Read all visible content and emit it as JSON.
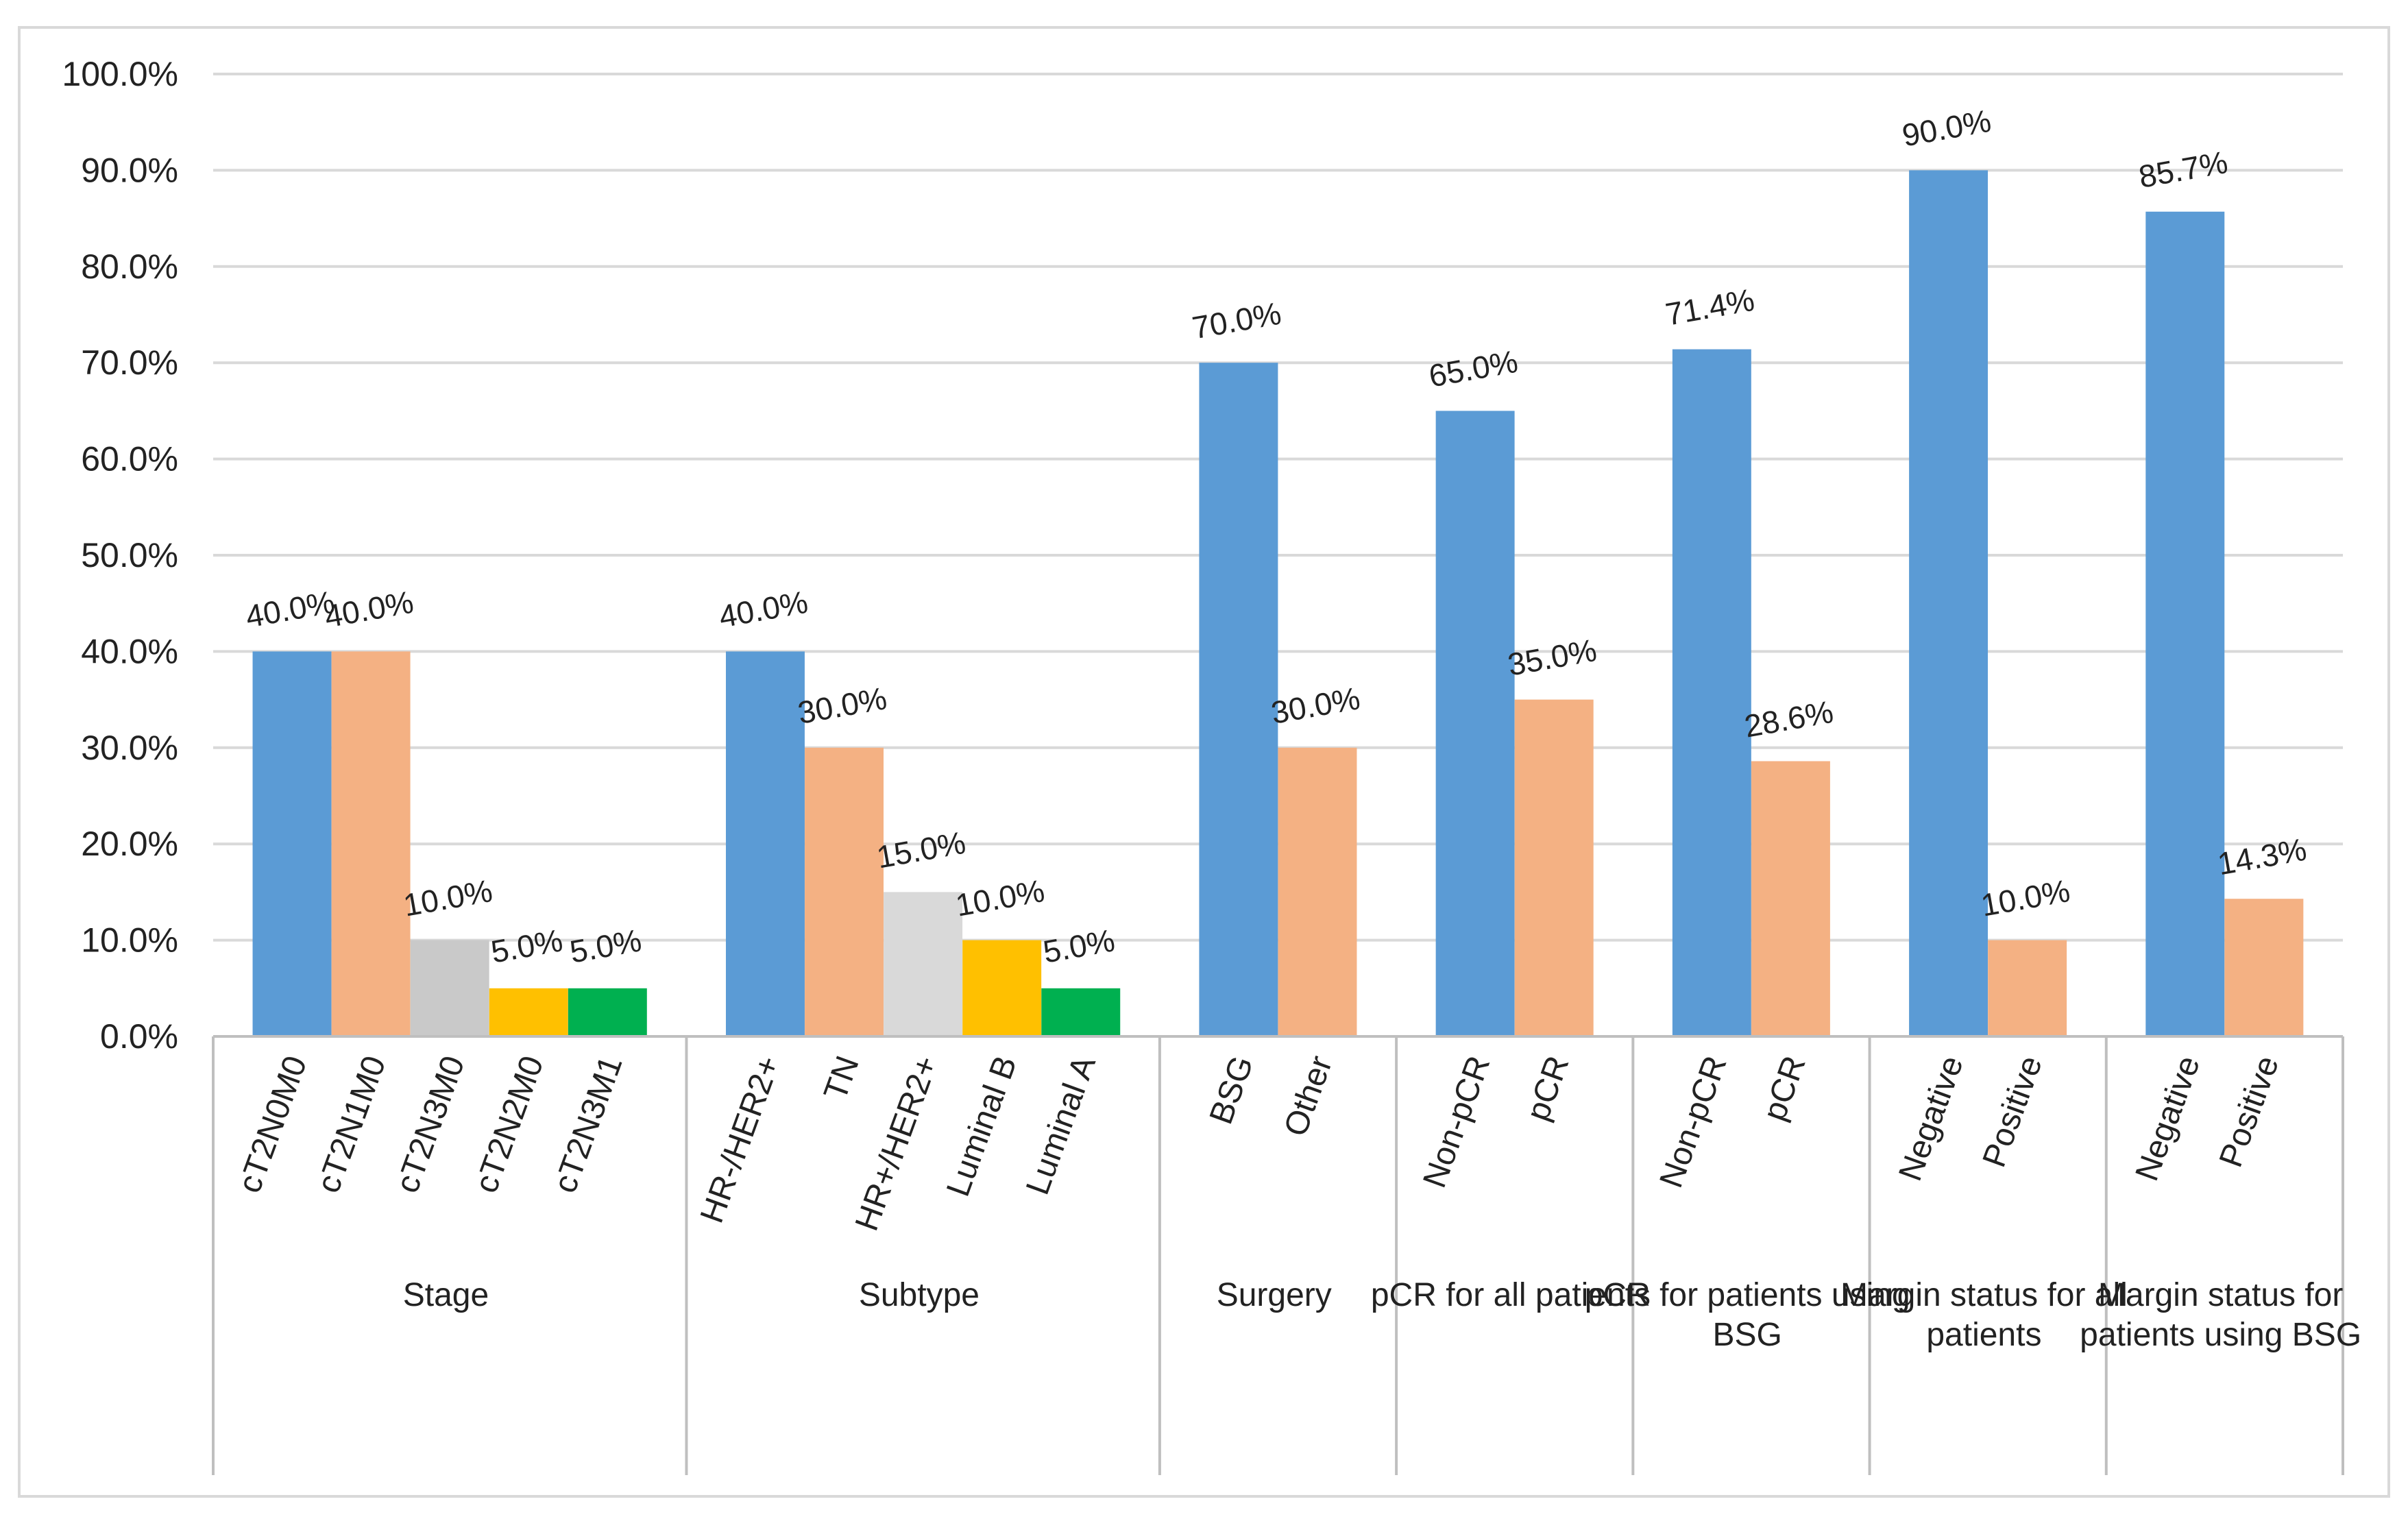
{
  "chart_data": {
    "type": "bar",
    "title": "",
    "xlabel": "",
    "ylabel": "",
    "ylim": [
      0,
      100
    ],
    "yticks": [
      "0.0%",
      "10.0%",
      "20.0%",
      "30.0%",
      "40.0%",
      "50.0%",
      "60.0%",
      "70.0%",
      "80.0%",
      "90.0%",
      "100.0%"
    ],
    "gridlines": true,
    "legend": "none",
    "groups": [
      {
        "name": "Stage",
        "bars": [
          {
            "label": "cT2N0M0",
            "value": 40.0,
            "value_label": "40.0%",
            "color": "#5B9BD5"
          },
          {
            "label": "cT2N1M0",
            "value": 40.0,
            "value_label": "40.0%",
            "color": "#F4B183"
          },
          {
            "label": "cT2N3M0",
            "value": 10.0,
            "value_label": "10.0%",
            "color": "#C9C9C9"
          },
          {
            "label": "cT2N2M0",
            "value": 5.0,
            "value_label": "5.0%",
            "color": "#FFC000"
          },
          {
            "label": "cT2N3M1",
            "value": 5.0,
            "value_label": "5.0%",
            "color": "#00B050"
          }
        ]
      },
      {
        "name": "Subtype",
        "bars": [
          {
            "label": "HR-/HER2+",
            "value": 40.0,
            "value_label": "40.0%",
            "color": "#5B9BD5"
          },
          {
            "label": "TN",
            "value": 30.0,
            "value_label": "30.0%",
            "color": "#F4B183"
          },
          {
            "label": "HR+/HER2+",
            "value": 15.0,
            "value_label": "15.0%",
            "color": "#D9D9D9"
          },
          {
            "label": "Luminal B",
            "value": 10.0,
            "value_label": "10.0%",
            "color": "#FFC000"
          },
          {
            "label": "Luminal A",
            "value": 5.0,
            "value_label": "5.0%",
            "color": "#00B050"
          }
        ]
      },
      {
        "name": "Surgery",
        "bars": [
          {
            "label": "BSG",
            "value": 70.0,
            "value_label": "70.0%",
            "color": "#5B9BD5"
          },
          {
            "label": "Other",
            "value": 30.0,
            "value_label": "30.0%",
            "color": "#F4B183"
          }
        ]
      },
      {
        "name": "pCR for all patients",
        "bars": [
          {
            "label": "Non-pCR",
            "value": 65.0,
            "value_label": "65.0%",
            "color": "#5B9BD5"
          },
          {
            "label": "pCR",
            "value": 35.0,
            "value_label": "35.0%",
            "color": "#F4B183"
          }
        ]
      },
      {
        "name": "pCR for patients using BSG",
        "bars": [
          {
            "label": "Non-pCR",
            "value": 71.4,
            "value_label": "71.4%",
            "color": "#5B9BD5"
          },
          {
            "label": "pCR",
            "value": 28.6,
            "value_label": "28.6%",
            "color": "#F4B183"
          }
        ]
      },
      {
        "name": "Margin status for all patients",
        "bars": [
          {
            "label": "Negative",
            "value": 90.0,
            "value_label": "90.0%",
            "color": "#5B9BD5"
          },
          {
            "label": "Positive",
            "value": 10.0,
            "value_label": "10.0%",
            "color": "#F4B183"
          }
        ]
      },
      {
        "name": "Margin status for patients using BSG",
        "bars": [
          {
            "label": "Negative",
            "value": 85.7,
            "value_label": "85.7%",
            "color": "#5B9BD5"
          },
          {
            "label": "Positive",
            "value": 14.3,
            "value_label": "14.3%",
            "color": "#F4B183"
          }
        ]
      }
    ]
  }
}
